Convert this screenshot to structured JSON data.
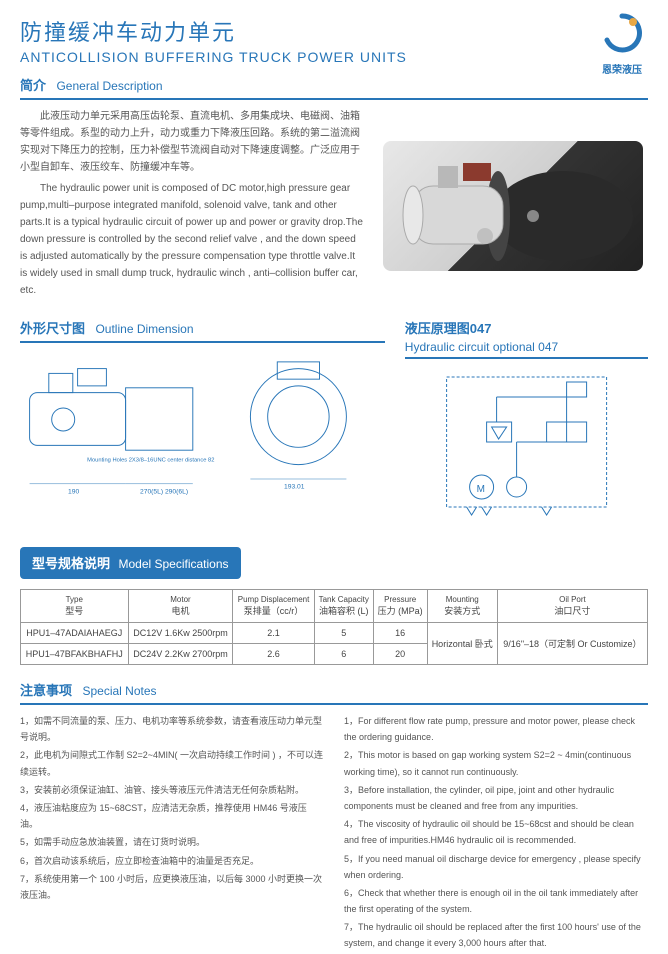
{
  "header": {
    "title_cn": "防撞缓冲车动力单元",
    "title_en": "ANTICOLLISION BUFFERING TRUCK POWER UNITS",
    "logo_text": "恩荣液压"
  },
  "desc": {
    "header_cn": "简介",
    "header_en": "General Description",
    "cn": "此液压动力单元采用高压齿轮泵、直流电机、多用集成块、电磁阀、油箱等零件组成。系型的动力上升，动力或重力下降液压回路。系统的第二溢流阀实现对下降压力的控制，压力补偿型节流阀自动对下降速度调整。广泛应用于小型自卸车、液压绞车、防撞缓冲车等。",
    "en": "The hydraulic power unit is composed of DC motor,high pressure gear pump,multi–purpose integrated manifold, solenoid valve, tank and other parts.It is a typical hydraulic circuit of power up and power or gravity drop.The down pressure is controlled by the second relief valve , and the down speed is adjusted automatically by the pressure compensation type throttle valve.It is widely used in small dump truck, hydraulic winch , anti–collision buffer car, etc."
  },
  "outline": {
    "header_cn": "外形尺寸图",
    "header_en": "Outline Dimension",
    "mounting_label": "Mounting Holes 2X3/8–16UNC center distance 82",
    "dim1": "190",
    "dim2": "270(5L) 290(6L)",
    "dim3": "193.01"
  },
  "circuit": {
    "header_cn": "液压原理图047",
    "header_en": "Hydraulic circuit optional 047"
  },
  "spec": {
    "header_cn": "型号规格说明",
    "header_en": "Model Specifications",
    "columns": [
      {
        "en": "Type",
        "cn": "型号"
      },
      {
        "en": "Motor",
        "cn": "电机"
      },
      {
        "en": "Pump Displacement",
        "cn": "泵排量（cc/r）"
      },
      {
        "en": "Tank Capacity",
        "cn": "油箱容积 (L)"
      },
      {
        "en": "Pressure",
        "cn": "压力 (MPa)"
      },
      {
        "en": "Mounting",
        "cn": "安装方式"
      },
      {
        "en": "Oil Port",
        "cn": "油口尺寸"
      }
    ],
    "rows": [
      [
        "HPU1–47ADAIAHAEGJ",
        "DC12V 1.6Kw 2500rpm",
        "2.1",
        "5",
        "16"
      ],
      [
        "HPU1–47BFAKBHAFHJ",
        "DC24V 2.2Kw 2700rpm",
        "2.6",
        "6",
        "20"
      ]
    ],
    "mounting": "Horizontal 卧式",
    "oilport": "9/16\"–18（可定制 Or Customize）"
  },
  "notes": {
    "header_cn": "注意事项",
    "header_en": "Special Notes",
    "cn": [
      "1，如需不同流量的泵、压力、电机功率等系统参数，请查看液压动力单元型号说明。",
      "2，此电机为间隙式工作制 S2=2~4MIN( 一次启动持续工作时间 ) ，不可以连续运转。",
      "3，安装前必须保证油缸、油管、接头等液压元件清洁无任何杂质粘附。",
      "4，液压油粘度应为 15~68CST，应清洁无杂质，推荐使用 HM46 号液压油。",
      "5，如需手动应急放油装置，请在订货时说明。",
      "6，首次启动该系统后，应立即检查油箱中的油量是否充足。",
      "7，系统使用第一个 100 小时后，应更换液压油，以后每 3000 小时更换一次液压油。"
    ],
    "en": [
      "1，For different flow rate pump, pressure and motor power, please check the ordering guidance.",
      "2，This motor is based on gap working system S2=2 ~ 4min(continuous working time), so it cannot run continuously.",
      "3，Before installation, the cylinder, oil pipe, joint and other hydraulic components must be cleaned and free from any impurities.",
      "4，The viscosity of hydraulic oil should be 15~68cst and should be clean and free of impurities.HM46 hydraulic oil is recommended.",
      "5，If you need manual oil discharge device for emergency , please specify when ordering.",
      "6，Check that whether there is enough oil in the oil tank immediately after the first operating of the system.",
      "7，The hydraulic oil should be replaced after the first 100 hours' use of the system, and change it every 3,000 hours after that."
    ]
  }
}
